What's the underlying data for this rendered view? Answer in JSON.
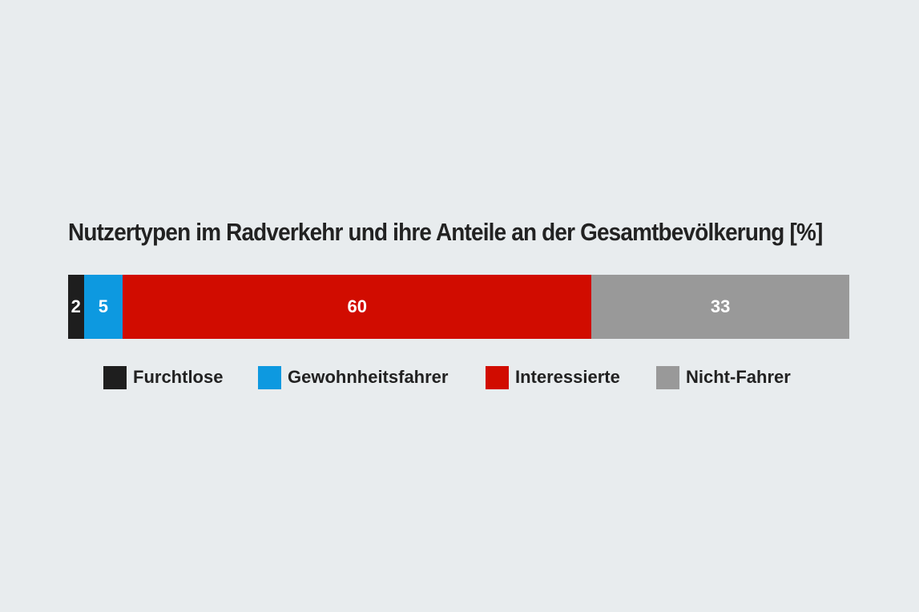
{
  "chart_data": {
    "type": "bar",
    "orientation": "horizontal-stacked",
    "title": "Nutzertypen im Radverkehr und ihre Anteile an der Gesamtbevölkerung [%]",
    "series": [
      {
        "name": "Furchtlose",
        "value": 2,
        "label": "2",
        "color": "#1e1e1e"
      },
      {
        "name": "Gewohnheitsfahrer",
        "value": 5,
        "label": "5",
        "color": "#0d99e0"
      },
      {
        "name": "Interessierte",
        "value": 60,
        "label": "60",
        "color": "#d10c00"
      },
      {
        "name": "Nicht-Fahrer",
        "value": 33,
        "label": "33",
        "color": "#999999"
      }
    ],
    "total": 100,
    "legend_position": "bottom",
    "grid": false
  }
}
